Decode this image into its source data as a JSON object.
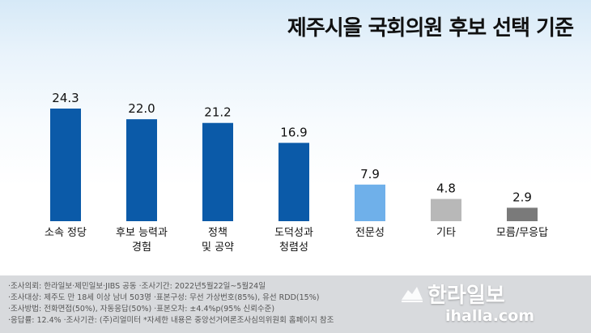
{
  "chart_data": {
    "type": "bar",
    "title": "제주시을 국회의원 후보 선택 기준",
    "categories": [
      [
        "소속 정당"
      ],
      [
        "후보 능력과",
        "경험"
      ],
      [
        "정책",
        "및 공약"
      ],
      [
        "도덕성과",
        "청렴성"
      ],
      [
        "전문성"
      ],
      [
        "기타"
      ],
      [
        "모름/무응답"
      ]
    ],
    "values": [
      24.3,
      22.0,
      21.2,
      16.9,
      7.9,
      4.8,
      2.9
    ],
    "value_labels": [
      "24.3",
      "22.0",
      "21.2",
      "16.9",
      "7.9",
      "4.8",
      "2.9"
    ],
    "bar_colors": [
      "#0b5aa8",
      "#0b5aa8",
      "#0b5aa8",
      "#0b5aa8",
      "#6fb0ea",
      "#b8b8b8",
      "#7a7a7a"
    ],
    "ylim": [
      0,
      24.3
    ],
    "grid": false,
    "xlabel": "",
    "ylabel": ""
  },
  "footnotes": [
    "·조사의뢰: 한라일보·제민일보·JIBS 공동   ·조사기간: 2022년5월22일~5월24일",
    "·조사대상: 제주도 만 18세 이상 남녀 503명   ·표본구성: 무선 가상번호(85%), 유선 RDD(15%)",
    "·조사방법: 전화면접(50%), 자동응답(50%)   ·표본오차: ±4.4%p(95% 신뢰수준)",
    "·응답률: 12.4%   ·조사기관: (주)리얼미터   *자세한 내용은 중앙선거여론조사심의위원회 홈페이지 참조"
  ],
  "logo": {
    "name": "한라일보",
    "url": "ihalla.com",
    "icon": "halla-mountain-icon"
  }
}
